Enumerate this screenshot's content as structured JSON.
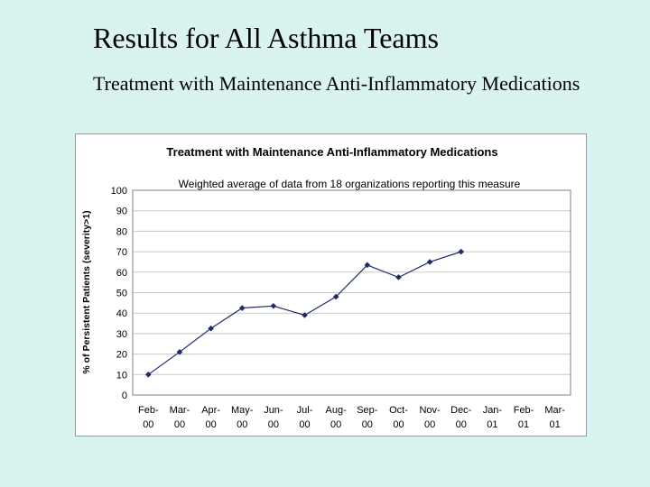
{
  "slide": {
    "title": "Results for All Asthma Teams",
    "subtitle": "Treatment with Maintenance Anti-Inflammatory Medications"
  },
  "chart_data": {
    "type": "line",
    "title": "Treatment with Maintenance Anti-Inflammatory Medications",
    "annotation": "Weighted average of data from 18 organizations reporting this measure",
    "ylabel": "% of Persistent Patients (severity>1)",
    "xlabel": "",
    "ylim": [
      0,
      100
    ],
    "yticks": [
      0,
      10,
      20,
      30,
      40,
      50,
      60,
      70,
      80,
      90,
      100
    ],
    "categories": [
      [
        "Feb-",
        "00"
      ],
      [
        "Mar-",
        "00"
      ],
      [
        "Apr-",
        "00"
      ],
      [
        "May-",
        "00"
      ],
      [
        "Jun-",
        "00"
      ],
      [
        "Jul-",
        "00"
      ],
      [
        "Aug-",
        "00"
      ],
      [
        "Sep-",
        "00"
      ],
      [
        "Oct-",
        "00"
      ],
      [
        "Nov-",
        "00"
      ],
      [
        "Dec-",
        "00"
      ],
      [
        "Jan-",
        "01"
      ],
      [
        "Feb-",
        "01"
      ],
      [
        "Mar-",
        "01"
      ]
    ],
    "values": [
      10,
      21,
      32.5,
      42.5,
      43.5,
      39,
      48,
      63.5,
      57.5,
      65,
      70,
      null,
      null,
      null
    ],
    "grid": true,
    "colors": {
      "line": "#1f2a6b",
      "marker": "#1f2a6b",
      "gridline": "#c8c8c8",
      "plot_border": "#808080"
    }
  }
}
